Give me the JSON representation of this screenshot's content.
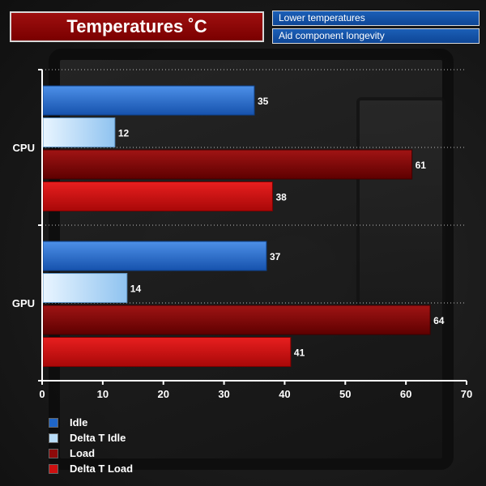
{
  "header": {
    "title": "Temperatures ˚C",
    "tags": [
      "Lower temperatures",
      "Aid component longevity"
    ]
  },
  "colors": {
    "title_bg": "#8b0000",
    "tag_bg": "#1456a8",
    "idle": "#1f66c8",
    "delta_idle": "#b8dcf8",
    "load": "#8e0a0a",
    "delta_load": "#cc1010"
  },
  "chart_data": {
    "type": "bar",
    "orientation": "horizontal",
    "title": "Temperatures ˚C",
    "categories": [
      "CPU",
      "GPU"
    ],
    "series": [
      {
        "name": "Idle",
        "values": [
          35,
          37
        ]
      },
      {
        "name": "Delta T Idle",
        "values": [
          12,
          14
        ]
      },
      {
        "name": "Load",
        "values": [
          61,
          64
        ]
      },
      {
        "name": "Delta T Load",
        "values": [
          38,
          41
        ]
      }
    ],
    "xlim": [
      0,
      70
    ],
    "xticks": [
      0,
      10,
      20,
      30,
      40,
      50,
      60,
      70
    ],
    "grid": true,
    "legend": "bottom-left"
  }
}
